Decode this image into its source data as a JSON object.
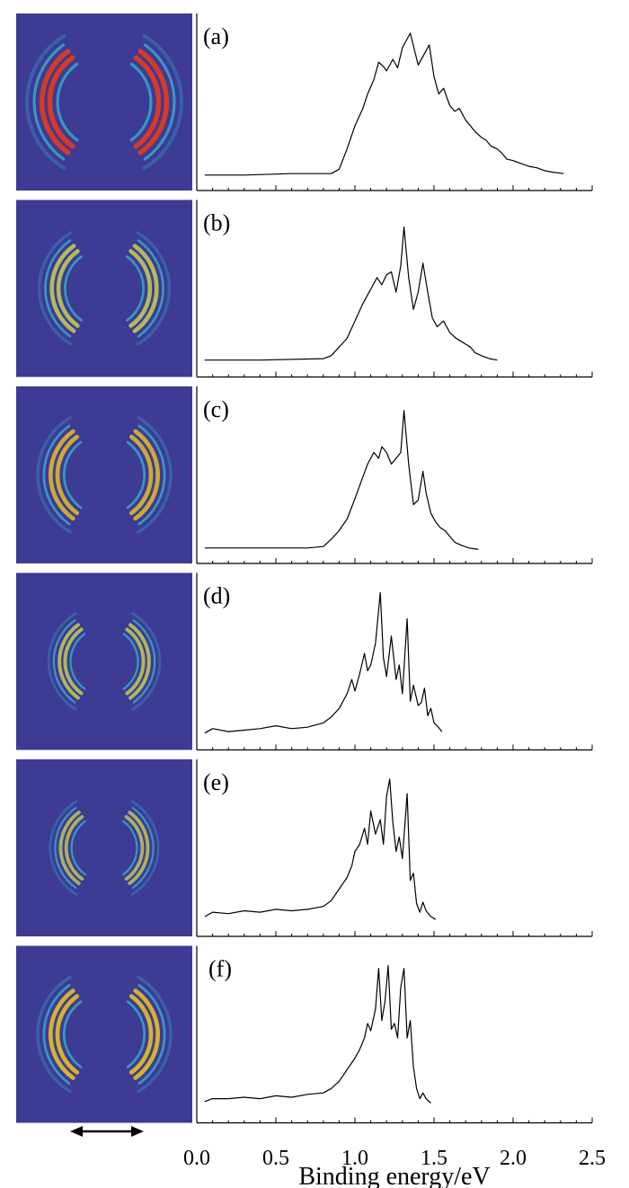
{
  "chart_data": {
    "type": "line",
    "x_axis": {
      "label": "Binding energy/eV",
      "range": [
        0.0,
        2.5
      ],
      "tick_labels": [
        "0.0",
        "0.5",
        "1.0",
        "1.5",
        "2.0",
        "2.5"
      ],
      "tick_values": [
        0.0,
        0.5,
        1.0,
        1.5,
        2.0,
        2.5
      ]
    },
    "image_panel_arrow": "double-headed horizontal arrow (polarization direction)",
    "image_colormap": "parula-like (dark blue background, cyan/yellow/red rings)",
    "panels": [
      {
        "label": "(a)",
        "ring_scale": 1.0,
        "ring_hot": 1.0,
        "x": [
          0.05,
          0.3,
          0.6,
          0.85,
          0.9,
          0.95,
          1.0,
          1.05,
          1.08,
          1.12,
          1.15,
          1.18,
          1.2,
          1.24,
          1.27,
          1.3,
          1.35,
          1.4,
          1.43,
          1.47,
          1.5,
          1.53,
          1.56,
          1.6,
          1.63,
          1.66,
          1.7,
          1.73,
          1.76,
          1.8,
          1.83,
          1.86,
          1.9,
          1.93,
          1.96,
          2.0,
          2.05,
          2.1,
          2.15,
          2.2,
          2.25,
          2.32
        ],
        "y": [
          0.02,
          0.02,
          0.03,
          0.03,
          0.06,
          0.2,
          0.36,
          0.48,
          0.58,
          0.68,
          0.8,
          0.77,
          0.74,
          0.82,
          0.76,
          0.9,
          1.0,
          0.78,
          0.84,
          0.92,
          0.7,
          0.58,
          0.62,
          0.5,
          0.46,
          0.48,
          0.4,
          0.36,
          0.32,
          0.28,
          0.26,
          0.22,
          0.2,
          0.17,
          0.13,
          0.12,
          0.1,
          0.08,
          0.07,
          0.05,
          0.04,
          0.03
        ]
      },
      {
        "label": "(b)",
        "ring_scale": 0.84,
        "ring_hot": 0.45,
        "x": [
          0.05,
          0.4,
          0.8,
          0.85,
          0.9,
          0.95,
          1.0,
          1.05,
          1.1,
          1.14,
          1.17,
          1.2,
          1.23,
          1.26,
          1.29,
          1.31,
          1.34,
          1.37,
          1.4,
          1.43,
          1.46,
          1.49,
          1.52,
          1.56,
          1.6,
          1.64,
          1.67,
          1.7,
          1.73,
          1.76,
          1.8,
          1.85,
          1.9
        ],
        "y": [
          0.03,
          0.03,
          0.04,
          0.06,
          0.12,
          0.18,
          0.3,
          0.42,
          0.52,
          0.6,
          0.55,
          0.62,
          0.64,
          0.5,
          0.68,
          0.95,
          0.6,
          0.38,
          0.5,
          0.7,
          0.5,
          0.32,
          0.26,
          0.3,
          0.22,
          0.18,
          0.16,
          0.14,
          0.12,
          0.08,
          0.06,
          0.04,
          0.03
        ]
      },
      {
        "label": "(c)",
        "ring_scale": 0.86,
        "ring_hot": 0.55,
        "x": [
          0.05,
          0.3,
          0.7,
          0.8,
          0.85,
          0.9,
          0.95,
          1.0,
          1.04,
          1.08,
          1.12,
          1.15,
          1.17,
          1.2,
          1.23,
          1.26,
          1.29,
          1.31,
          1.34,
          1.37,
          1.4,
          1.43,
          1.45,
          1.48,
          1.51,
          1.54,
          1.57,
          1.6,
          1.63,
          1.67,
          1.72,
          1.78
        ],
        "y": [
          0.02,
          0.02,
          0.02,
          0.03,
          0.08,
          0.14,
          0.22,
          0.36,
          0.48,
          0.6,
          0.68,
          0.64,
          0.72,
          0.68,
          0.6,
          0.64,
          0.68,
          0.97,
          0.6,
          0.32,
          0.35,
          0.55,
          0.4,
          0.26,
          0.2,
          0.16,
          0.14,
          0.1,
          0.06,
          0.04,
          0.02,
          0.01
        ]
      },
      {
        "label": "(d)",
        "ring_scale": 0.72,
        "ring_hot": 0.4,
        "x": [
          0.05,
          0.1,
          0.2,
          0.3,
          0.4,
          0.5,
          0.6,
          0.7,
          0.8,
          0.85,
          0.9,
          0.95,
          0.98,
          1.0,
          1.03,
          1.06,
          1.08,
          1.1,
          1.13,
          1.16,
          1.18,
          1.2,
          1.23,
          1.26,
          1.28,
          1.3,
          1.33,
          1.35,
          1.37,
          1.4,
          1.42,
          1.44,
          1.46,
          1.48,
          1.5,
          1.52,
          1.55
        ],
        "y": [
          0.03,
          0.06,
          0.04,
          0.05,
          0.06,
          0.08,
          0.06,
          0.07,
          0.1,
          0.14,
          0.2,
          0.3,
          0.4,
          0.32,
          0.44,
          0.58,
          0.46,
          0.5,
          0.65,
          1.0,
          0.55,
          0.42,
          0.7,
          0.4,
          0.5,
          0.3,
          0.82,
          0.25,
          0.36,
          0.22,
          0.24,
          0.34,
          0.15,
          0.2,
          0.1,
          0.08,
          0.04
        ]
      },
      {
        "label": "(e)",
        "ring_scale": 0.7,
        "ring_hot": 0.3,
        "x": [
          0.05,
          0.1,
          0.2,
          0.3,
          0.4,
          0.5,
          0.6,
          0.7,
          0.8,
          0.85,
          0.9,
          0.95,
          0.98,
          1.0,
          1.03,
          1.06,
          1.08,
          1.1,
          1.13,
          1.16,
          1.18,
          1.2,
          1.22,
          1.24,
          1.26,
          1.28,
          1.3,
          1.33,
          1.35,
          1.37,
          1.39,
          1.41,
          1.43,
          1.45,
          1.48,
          1.51
        ],
        "y": [
          0.05,
          0.08,
          0.07,
          0.09,
          0.08,
          0.1,
          0.09,
          0.1,
          0.12,
          0.16,
          0.24,
          0.32,
          0.4,
          0.5,
          0.55,
          0.66,
          0.55,
          0.78,
          0.62,
          0.72,
          0.55,
          0.88,
          1.0,
          0.7,
          0.5,
          0.6,
          0.45,
          0.9,
          0.3,
          0.35,
          0.14,
          0.08,
          0.15,
          0.09,
          0.05,
          0.03
        ]
      },
      {
        "label": "(f)",
        "ring_scale": 0.86,
        "ring_hot": 0.7,
        "x": [
          0.05,
          0.1,
          0.2,
          0.3,
          0.4,
          0.5,
          0.6,
          0.7,
          0.8,
          0.85,
          0.9,
          0.95,
          1.0,
          1.03,
          1.06,
          1.08,
          1.1,
          1.13,
          1.15,
          1.17,
          1.19,
          1.21,
          1.23,
          1.25,
          1.27,
          1.29,
          1.31,
          1.33,
          1.35,
          1.37,
          1.39,
          1.41,
          1.43,
          1.45,
          1.48
        ],
        "y": [
          0.06,
          0.08,
          0.08,
          0.09,
          0.08,
          0.1,
          0.09,
          0.11,
          0.12,
          0.15,
          0.2,
          0.28,
          0.36,
          0.42,
          0.5,
          0.6,
          0.55,
          0.7,
          0.98,
          0.62,
          0.75,
          1.0,
          0.56,
          0.6,
          0.5,
          0.85,
          0.98,
          0.5,
          0.62,
          0.3,
          0.15,
          0.08,
          0.12,
          0.08,
          0.05
        ]
      }
    ]
  }
}
